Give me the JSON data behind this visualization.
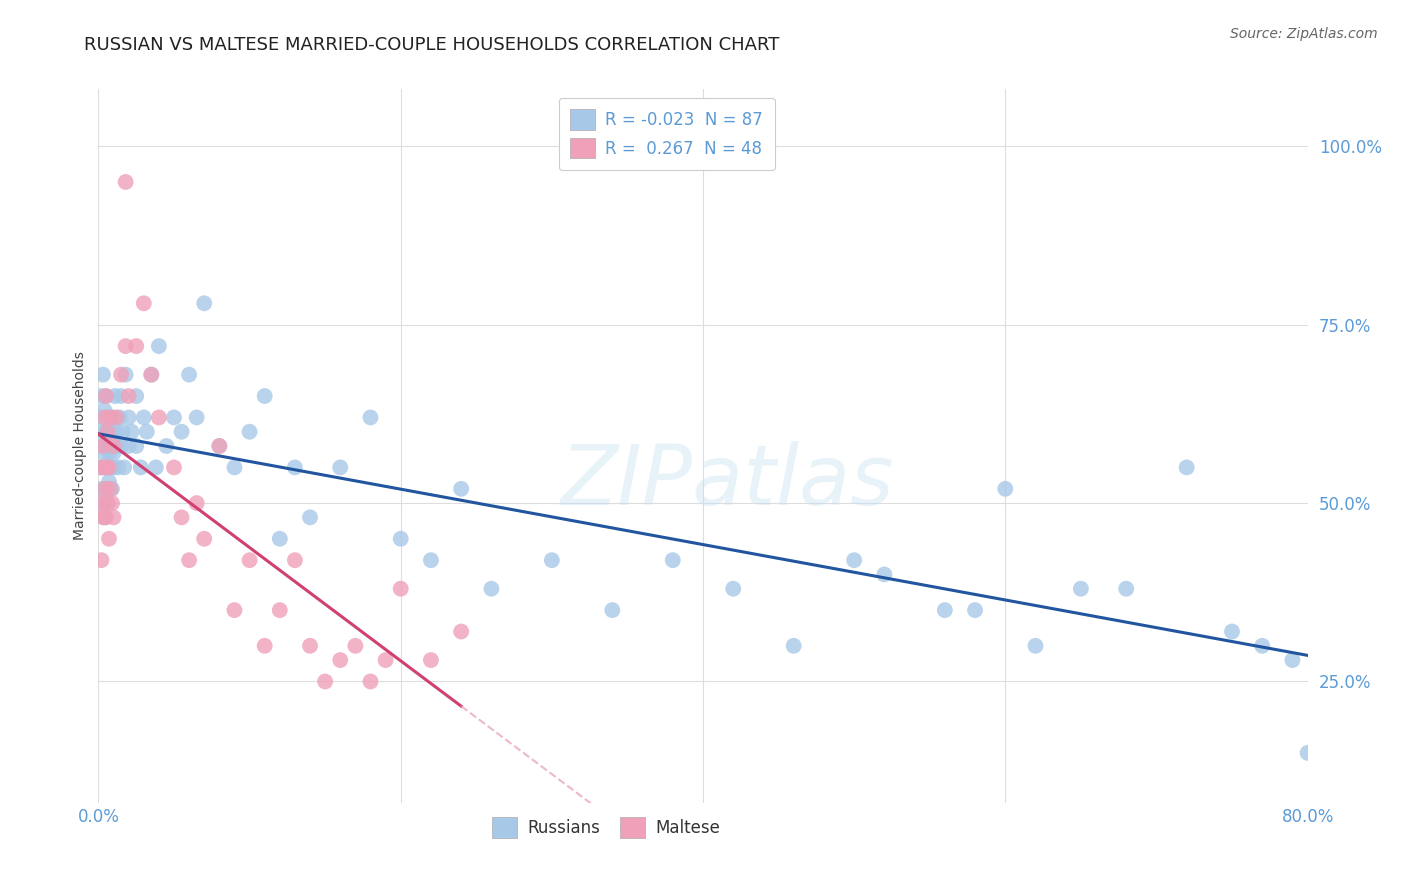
{
  "title": "RUSSIAN VS MALTESE MARRIED-COUPLE HOUSEHOLDS CORRELATION CHART",
  "source_text": "Source: ZipAtlas.com",
  "ylabel": "Married-couple Households",
  "xlim": [
    0.0,
    0.8
  ],
  "ylim": [
    0.08,
    1.08
  ],
  "x_ticks": [
    0.0,
    0.2,
    0.4,
    0.6,
    0.8
  ],
  "x_tick_labels": [
    "0.0%",
    "",
    "",
    "",
    "80.0%"
  ],
  "y_ticks": [
    0.25,
    0.5,
    0.75,
    1.0
  ],
  "y_tick_labels": [
    "25.0%",
    "50.0%",
    "75.0%",
    "100.0%"
  ],
  "russian_color": "#a8c8e8",
  "maltese_color": "#f0a0b8",
  "russian_line_color": "#2255a0",
  "maltese_line_color": "#d04070",
  "maltese_line_dashed_color": "#e8a0b8",
  "legend_R_russian": "-0.023",
  "legend_N_russian": "87",
  "legend_R_maltese": "0.267",
  "legend_N_maltese": "48",
  "watermark": "ZIPatlas",
  "background_color": "#ffffff",
  "grid_color": "#dddddd",
  "axis_label_color": "#5b9bd5",
  "title_fontsize": 13,
  "rus_x": [
    0.001,
    0.001,
    0.002,
    0.002,
    0.002,
    0.003,
    0.003,
    0.003,
    0.003,
    0.004,
    0.004,
    0.004,
    0.005,
    0.005,
    0.005,
    0.005,
    0.006,
    0.006,
    0.006,
    0.007,
    0.007,
    0.007,
    0.008,
    0.008,
    0.009,
    0.009,
    0.01,
    0.01,
    0.01,
    0.011,
    0.012,
    0.012,
    0.013,
    0.014,
    0.015,
    0.015,
    0.016,
    0.017,
    0.018,
    0.02,
    0.02,
    0.022,
    0.025,
    0.025,
    0.028,
    0.03,
    0.032,
    0.035,
    0.038,
    0.04,
    0.045,
    0.05,
    0.055,
    0.06,
    0.065,
    0.07,
    0.08,
    0.09,
    0.1,
    0.11,
    0.12,
    0.13,
    0.14,
    0.16,
    0.18,
    0.2,
    0.22,
    0.24,
    0.26,
    0.3,
    0.34,
    0.38,
    0.42,
    0.46,
    0.52,
    0.58,
    0.62,
    0.68,
    0.72,
    0.75,
    0.77,
    0.79,
    0.8,
    0.6,
    0.65,
    0.5,
    0.56
  ],
  "rus_y": [
    0.62,
    0.55,
    0.58,
    0.65,
    0.52,
    0.6,
    0.55,
    0.68,
    0.5,
    0.57,
    0.63,
    0.48,
    0.6,
    0.55,
    0.52,
    0.65,
    0.58,
    0.62,
    0.5,
    0.57,
    0.53,
    0.6,
    0.55,
    0.62,
    0.52,
    0.6,
    0.57,
    0.55,
    0.62,
    0.65,
    0.58,
    0.6,
    0.55,
    0.62,
    0.58,
    0.65,
    0.6,
    0.55,
    0.68,
    0.62,
    0.58,
    0.6,
    0.65,
    0.58,
    0.55,
    0.62,
    0.6,
    0.68,
    0.55,
    0.72,
    0.58,
    0.62,
    0.6,
    0.68,
    0.62,
    0.78,
    0.58,
    0.55,
    0.6,
    0.65,
    0.45,
    0.55,
    0.48,
    0.55,
    0.62,
    0.45,
    0.42,
    0.52,
    0.38,
    0.42,
    0.35,
    0.42,
    0.38,
    0.3,
    0.4,
    0.35,
    0.3,
    0.38,
    0.55,
    0.32,
    0.3,
    0.28,
    0.15,
    0.52,
    0.38,
    0.42,
    0.35
  ],
  "malt_x": [
    0.018,
    0.001,
    0.002,
    0.002,
    0.003,
    0.003,
    0.004,
    0.004,
    0.005,
    0.005,
    0.005,
    0.006,
    0.006,
    0.007,
    0.007,
    0.008,
    0.008,
    0.009,
    0.01,
    0.01,
    0.012,
    0.015,
    0.018,
    0.02,
    0.025,
    0.03,
    0.035,
    0.04,
    0.05,
    0.055,
    0.06,
    0.065,
    0.07,
    0.08,
    0.09,
    0.1,
    0.11,
    0.12,
    0.13,
    0.14,
    0.15,
    0.16,
    0.17,
    0.18,
    0.19,
    0.2,
    0.22,
    0.24
  ],
  "malt_y": [
    0.95,
    0.5,
    0.42,
    0.55,
    0.48,
    0.58,
    0.52,
    0.62,
    0.48,
    0.55,
    0.65,
    0.5,
    0.6,
    0.45,
    0.55,
    0.52,
    0.62,
    0.5,
    0.48,
    0.58,
    0.62,
    0.68,
    0.72,
    0.65,
    0.72,
    0.78,
    0.68,
    0.62,
    0.55,
    0.48,
    0.42,
    0.5,
    0.45,
    0.58,
    0.35,
    0.42,
    0.3,
    0.35,
    0.42,
    0.3,
    0.25,
    0.28,
    0.3,
    0.25,
    0.28,
    0.38,
    0.28,
    0.32
  ]
}
